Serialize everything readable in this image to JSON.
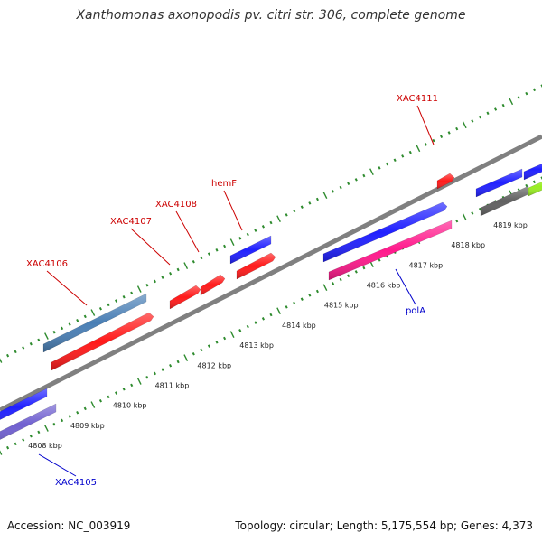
{
  "title": "Xanthomonas axonopodis pv. citri str. 306, complete genome",
  "footer": {
    "accession": "Accession: NC_003919",
    "summary": "Topology: circular; Length: 5,175,554 bp; Genes: 4,373"
  },
  "colors": {
    "backbone": "#808080",
    "tick": "#2e8b2e",
    "label_red": "#cc0000",
    "label_blue": "#0000cc"
  },
  "scale": {
    "start_kbp": 4808,
    "end_kbp": 4819,
    "unit": "kbp"
  },
  "scale_labels": [
    "4808 kbp",
    "4809 kbp",
    "4810 kbp",
    "4811 kbp",
    "4812 kbp",
    "4813 kbp",
    "4814 kbp",
    "4815 kbp",
    "4816 kbp",
    "4817 kbp",
    "4818 kbp",
    "4819 kbp"
  ],
  "gene_labels": [
    {
      "name": "XAC4111",
      "color": "red"
    },
    {
      "name": "hemF",
      "color": "red"
    },
    {
      "name": "XAC4108",
      "color": "red"
    },
    {
      "name": "XAC4107",
      "color": "red"
    },
    {
      "name": "XAC4106",
      "color": "red"
    },
    {
      "name": "polA",
      "color": "blue"
    },
    {
      "name": "XAC4105",
      "color": "blue"
    }
  ],
  "features": [
    {
      "color": "#2020ff",
      "strand": "+"
    },
    {
      "color": "#7060d0",
      "strand": "-"
    },
    {
      "color": "#4a7fb5",
      "strand": "+"
    },
    {
      "color": "#ff1a1a",
      "strand": "-"
    },
    {
      "color": "#ff1a1a",
      "strand": "-"
    },
    {
      "color": "#ff1a1a",
      "strand": "-"
    },
    {
      "color": "#2020ff",
      "strand": "+"
    },
    {
      "color": "#ff1a1a",
      "strand": "-"
    },
    {
      "color": "#2020ff",
      "strand": "+"
    },
    {
      "color": "#ff1a8c",
      "strand": "-"
    },
    {
      "color": "#ff1a1a",
      "strand": "+"
    },
    {
      "color": "#2020ff",
      "strand": "+"
    },
    {
      "color": "#606060",
      "strand": "-"
    },
    {
      "color": "#2020ff",
      "strand": "+"
    },
    {
      "color": "#99ee22",
      "strand": "-"
    }
  ]
}
